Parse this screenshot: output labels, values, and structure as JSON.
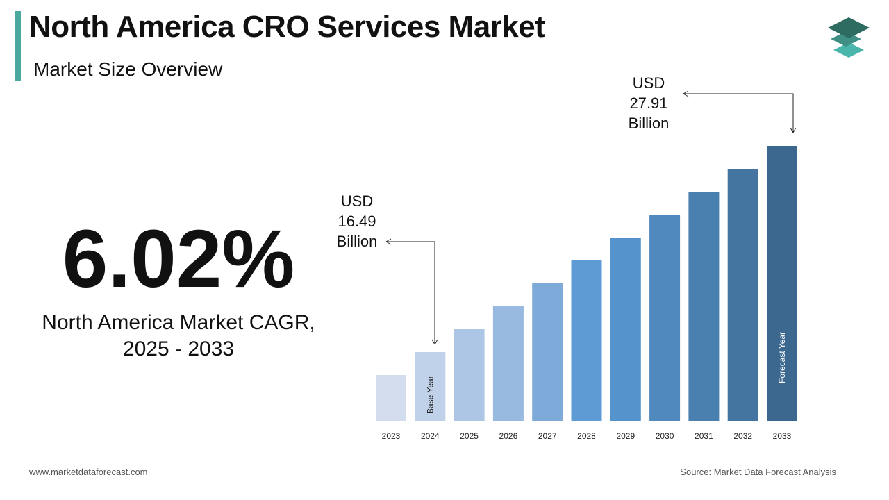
{
  "header": {
    "title": "North America CRO Services Market",
    "subtitle": "Market Size Overview"
  },
  "highlight": {
    "cagr": "6.02%",
    "label_line1": "North America Market CAGR,",
    "label_line2": "2025 - 2033"
  },
  "callouts": {
    "start": {
      "line1": "USD",
      "line2": "16.49",
      "line3": "Billion"
    },
    "end": {
      "line1": "USD",
      "line2": "27.91",
      "line3": "Billion"
    }
  },
  "footer": {
    "website": "www.marketdataforecast.com",
    "source": "Source: Market Data Forecast Analysis"
  },
  "logo": {
    "icon": "stacked-layers-icon",
    "colors": [
      "#2e6b60",
      "#3f8f85",
      "#4ab5ab"
    ]
  },
  "chart_data": {
    "type": "bar",
    "categories": [
      "2023",
      "2024",
      "2025",
      "2026",
      "2027",
      "2028",
      "2029",
      "2030",
      "2031",
      "2032",
      "2033"
    ],
    "values": [
      15.55,
      16.49,
      17.48,
      18.54,
      19.65,
      20.84,
      22.09,
      23.42,
      24.83,
      26.33,
      27.91
    ],
    "unit": "USD Billion",
    "labeled_values": {
      "2024": 16.49,
      "2033": 27.91
    },
    "bar_labels": {
      "2024": "Base Year",
      "2033": "Forecast Year"
    },
    "colors": [
      "#d3ddee",
      "#c0d2ea",
      "#adc6e6",
      "#98b9e0",
      "#7eaad9",
      "#5e9bd5",
      "#5593cc",
      "#4f89bd",
      "#4a80b0",
      "#4375a0",
      "#3c6890"
    ],
    "grid": false,
    "legend": "none"
  }
}
